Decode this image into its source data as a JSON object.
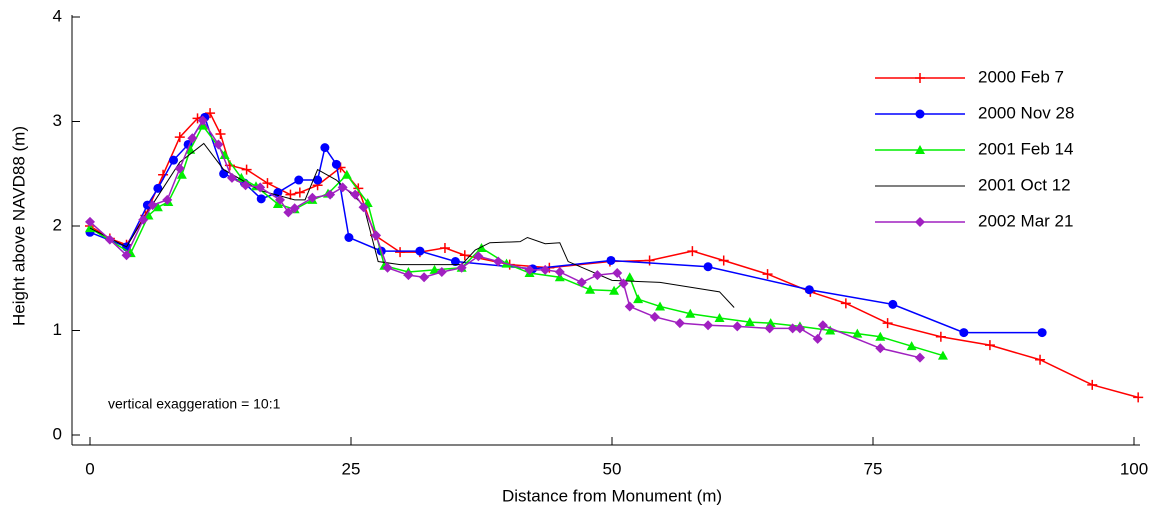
{
  "chart_data": {
    "type": "line",
    "xlabel": "Distance from Monument (m)",
    "ylabel": "Height above NAVD88 (m)",
    "annotation": "vertical exaggeration = 10:1",
    "xlim": [
      0,
      100
    ],
    "xticks": [
      0,
      25,
      50,
      75,
      100
    ],
    "ylim": [
      0,
      4
    ],
    "yticks": [
      0,
      1,
      2,
      3,
      4
    ],
    "legend": "upper-right",
    "series": [
      {
        "name": "2000 Feb 7",
        "color": "#ff0000",
        "marker": "plus",
        "x": [
          0,
          1.9,
          3.5,
          5.3,
          7,
          8.6,
          10.3,
          11.5,
          12.5,
          13.4,
          15,
          17,
          19.2,
          20.1,
          21.8,
          24,
          25.7,
          27.3,
          29.7,
          31.6,
          34,
          35.9,
          40.2,
          44,
          49.8,
          53.6,
          57.7,
          60.7,
          64.9,
          69,
          72.4,
          76.4,
          81.5,
          86.2,
          91,
          96,
          100.4
        ],
        "values": [
          2.0,
          1.88,
          1.82,
          2.1,
          2.49,
          2.85,
          3.03,
          3.08,
          2.88,
          2.58,
          2.54,
          2.41,
          2.3,
          2.32,
          2.39,
          2.56,
          2.36,
          1.91,
          1.75,
          1.75,
          1.79,
          1.72,
          1.63,
          1.6,
          1.66,
          1.67,
          1.76,
          1.67,
          1.54,
          1.37,
          1.26,
          1.07,
          0.94,
          0.86,
          0.72,
          0.48,
          0.36
        ]
      },
      {
        "name": "2000 Nov 28",
        "color": "#0000ff",
        "marker": "circle",
        "x": [
          0,
          3.5,
          5.5,
          6.5,
          8,
          9.4,
          11,
          12.8,
          14.8,
          16.4,
          18,
          20,
          21.8,
          22.5,
          23.6,
          24.8,
          27.9,
          31.6,
          35,
          42.4,
          49.9,
          59.2,
          68.9,
          76.9,
          83.7,
          91.2
        ],
        "values": [
          1.94,
          1.8,
          2.2,
          2.36,
          2.63,
          2.78,
          3.04,
          2.5,
          2.41,
          2.26,
          2.32,
          2.44,
          2.44,
          2.75,
          2.59,
          1.89,
          1.76,
          1.76,
          1.66,
          1.59,
          1.67,
          1.61,
          1.39,
          1.25,
          0.98,
          0.98
        ]
      },
      {
        "name": "2001 Feb 14",
        "color": "#00ee00",
        "marker": "triangle",
        "x": [
          0,
          3.9,
          5.6,
          6.5,
          7.5,
          8.8,
          9.6,
          10.8,
          12.9,
          14.5,
          15.9,
          18,
          19.6,
          21.3,
          22.8,
          24.6,
          26.6,
          28.2,
          30.5,
          33,
          35.6,
          37.5,
          39.9,
          42.1,
          45,
          47.9,
          50.2,
          51.7,
          52.5,
          54.6,
          57.5,
          60.3,
          63.2,
          65.2,
          68,
          70.9,
          73.5,
          75.7,
          78.7,
          81.7
        ],
        "values": [
          1.98,
          1.74,
          2.1,
          2.18,
          2.23,
          2.49,
          2.73,
          2.96,
          2.68,
          2.46,
          2.38,
          2.21,
          2.16,
          2.25,
          2.31,
          2.49,
          2.22,
          1.62,
          1.56,
          1.58,
          1.6,
          1.79,
          1.64,
          1.55,
          1.51,
          1.39,
          1.38,
          1.51,
          1.3,
          1.23,
          1.16,
          1.12,
          1.08,
          1.07,
          1.04,
          1.0,
          0.97,
          0.94,
          0.85,
          0.76
        ]
      },
      {
        "name": "2001 Oct 12",
        "color": "#000000",
        "marker": "none",
        "x": [
          0,
          3.5,
          5.3,
          8.6,
          10.9,
          12.8,
          16.3,
          19.6,
          20.6,
          21.8,
          23.6,
          26.2,
          27.6,
          29.7,
          33.5,
          35.6,
          36.9,
          38.3,
          41.2,
          41.9,
          43.6,
          45,
          45.8,
          50,
          54.6,
          60.3,
          61.7
        ],
        "values": [
          1.98,
          1.8,
          2.1,
          2.61,
          2.79,
          2.54,
          2.34,
          2.25,
          2.25,
          2.54,
          2.44,
          2.2,
          1.66,
          1.63,
          1.63,
          1.63,
          1.77,
          1.84,
          1.85,
          1.89,
          1.83,
          1.84,
          1.66,
          1.48,
          1.46,
          1.37,
          1.22
        ]
      },
      {
        "name": "2002 Mar 21",
        "color": "#a020c0",
        "marker": "diamond",
        "x": [
          0,
          1.9,
          3.5,
          5.1,
          6,
          7.4,
          8.6,
          9.8,
          10.8,
          12.3,
          13.6,
          14.9,
          16.3,
          18.2,
          19,
          19.6,
          21.3,
          23,
          24.2,
          25.4,
          26.2,
          27.4,
          28.5,
          30.5,
          32,
          33.7,
          35.6,
          37.2,
          39.1,
          42.1,
          43.6,
          45,
          47.1,
          48.6,
          50.5,
          51.1,
          51.7,
          54.1,
          56.5,
          59.2,
          62,
          65.1,
          67.3,
          68,
          69.7,
          70.2,
          75.7,
          79.5
        ],
        "values": [
          2.04,
          1.87,
          1.72,
          2.06,
          2.2,
          2.25,
          2.55,
          2.84,
          3.01,
          2.78,
          2.46,
          2.39,
          2.37,
          2.25,
          2.13,
          2.17,
          2.27,
          2.3,
          2.37,
          2.3,
          2.18,
          1.91,
          1.6,
          1.53,
          1.51,
          1.56,
          1.6,
          1.71,
          1.66,
          1.58,
          1.58,
          1.56,
          1.46,
          1.53,
          1.55,
          1.45,
          1.23,
          1.13,
          1.07,
          1.05,
          1.04,
          1.02,
          1.02,
          1.02,
          0.92,
          1.05,
          0.83,
          0.74
        ]
      }
    ]
  }
}
